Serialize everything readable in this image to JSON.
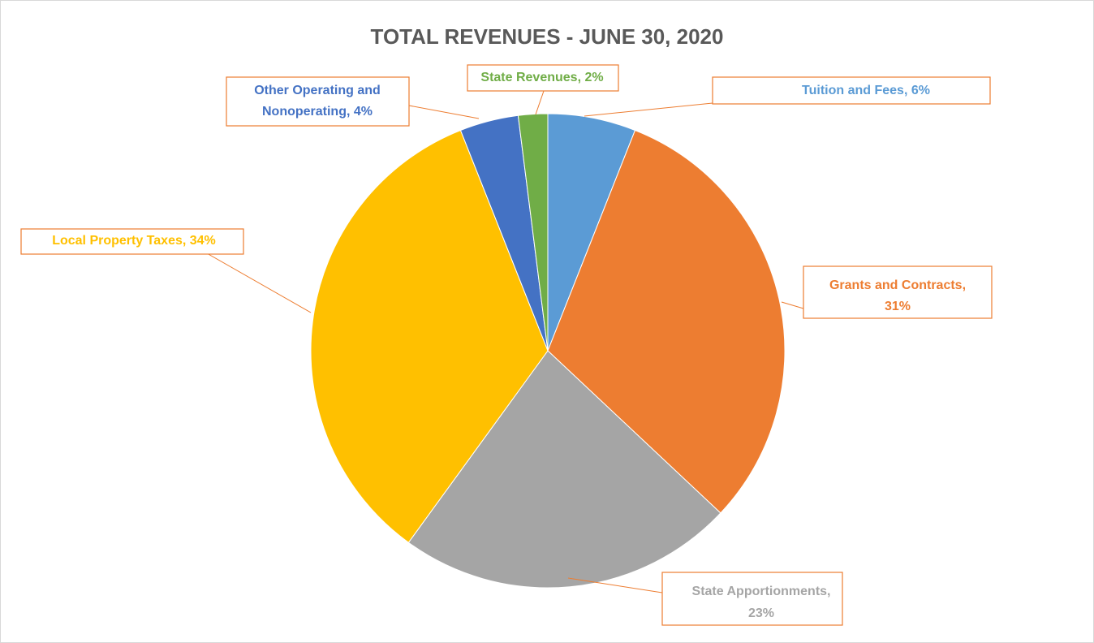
{
  "chart_data": {
    "type": "pie",
    "title": "TOTAL REVENUES - JUNE 30, 2020",
    "labels": [
      "Tuition and Fees, 6%",
      "Grants and Contracts, 31%",
      "State Apportionments, 23%",
      "Local Property Taxes, 34%",
      "Other Operating and Nonoperating, 4%",
      "State Revenues, 2%"
    ],
    "values": [
      6,
      31,
      23,
      34,
      4,
      2
    ],
    "colors": [
      "#5b9bd5",
      "#ed7d31",
      "#a5a5a5",
      "#ffc000",
      "#4472c4",
      "#70ad47"
    ]
  }
}
